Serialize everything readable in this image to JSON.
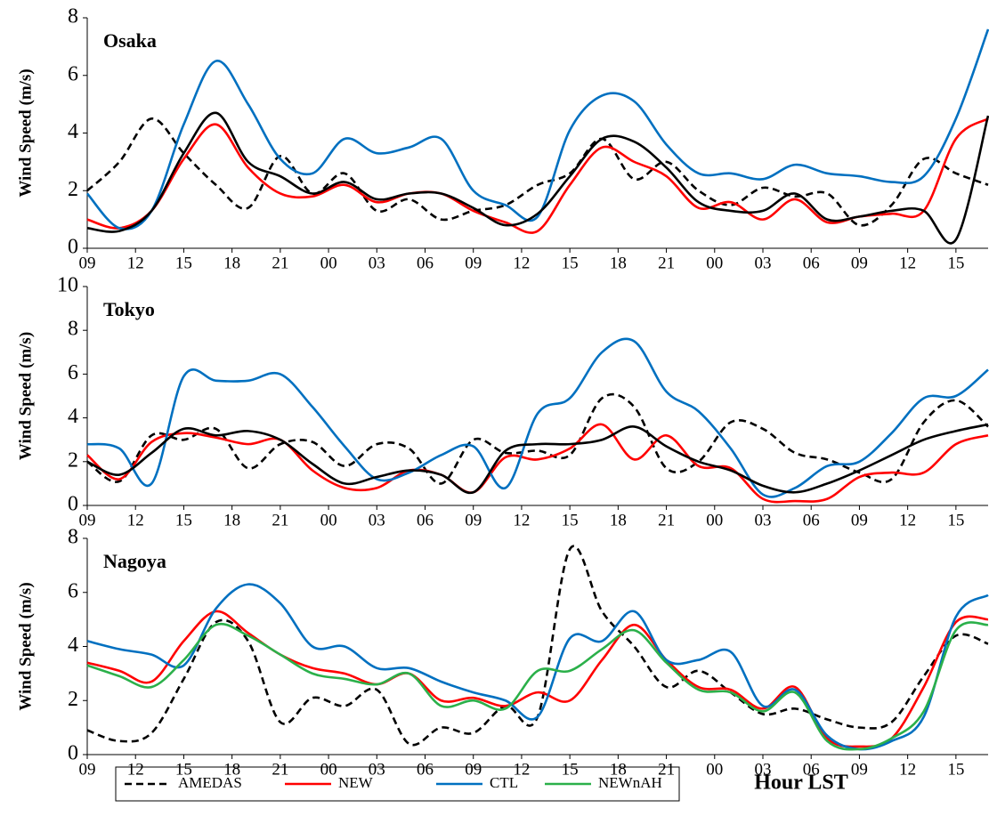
{
  "chart_data": [
    {
      "type": "line",
      "title": "Osaka",
      "y_label": "Wind Speed (m/s)",
      "x": [
        0,
        2,
        4,
        6,
        8,
        10,
        12,
        14,
        16,
        18,
        20,
        22,
        24,
        26,
        28,
        30,
        32,
        34,
        36,
        38,
        40,
        42,
        44,
        46,
        48,
        50,
        52,
        54,
        56
      ],
      "xlim": [
        0,
        56
      ],
      "xticks": [
        {
          "value": 0,
          "label": "09"
        },
        {
          "value": 3,
          "label": "12"
        },
        {
          "value": 6,
          "label": "15"
        },
        {
          "value": 9,
          "label": "18"
        },
        {
          "value": 12,
          "label": "21"
        },
        {
          "value": 15,
          "label": "00"
        },
        {
          "value": 18,
          "label": "03"
        },
        {
          "value": 21,
          "label": "06"
        },
        {
          "value": 24,
          "label": "09"
        },
        {
          "value": 27,
          "label": "12"
        },
        {
          "value": 30,
          "label": "15"
        },
        {
          "value": 33,
          "label": "18"
        },
        {
          "value": 36,
          "label": "21"
        },
        {
          "value": 39,
          "label": "00"
        },
        {
          "value": 42,
          "label": "03"
        },
        {
          "value": 45,
          "label": "06"
        },
        {
          "value": 48,
          "label": "09"
        },
        {
          "value": 51,
          "label": "12"
        },
        {
          "value": 54,
          "label": "15"
        }
      ],
      "ylim": [
        0,
        8
      ],
      "yticks": [
        0,
        2,
        4,
        6,
        8
      ],
      "series": [
        {
          "color": "#000000",
          "style": "dashed",
          "values": [
            2.0,
            3.0,
            4.5,
            3.3,
            2.2,
            1.4,
            3.2,
            1.9,
            2.6,
            1.3,
            1.7,
            1.0,
            1.3,
            1.5,
            2.2,
            2.6,
            3.8,
            2.4,
            3.0,
            2.0,
            1.5,
            2.1,
            1.8,
            1.9,
            0.8,
            1.5,
            3.1,
            2.6,
            2.2
          ]
        },
        {
          "color": "#ff0000",
          "style": "solid",
          "values": [
            1.0,
            0.7,
            1.3,
            3.1,
            4.3,
            2.8,
            1.9,
            1.8,
            2.2,
            1.6,
            1.9,
            1.9,
            1.3,
            0.9,
            0.6,
            2.2,
            3.5,
            3.0,
            2.5,
            1.4,
            1.6,
            1.0,
            1.7,
            0.9,
            1.1,
            1.2,
            1.3,
            3.8,
            4.5
          ]
        },
        {
          "color": "#0070c0",
          "style": "solid",
          "values": [
            1.9,
            0.7,
            1.3,
            4.3,
            6.5,
            5.0,
            3.1,
            2.6,
            3.8,
            3.3,
            3.5,
            3.8,
            2.0,
            1.5,
            1.1,
            4.1,
            5.3,
            5.1,
            3.6,
            2.6,
            2.6,
            2.4,
            2.9,
            2.6,
            2.5,
            2.3,
            2.5,
            4.5,
            7.6
          ]
        },
        {
          "color": "#000000",
          "style": "solid",
          "values": [
            0.7,
            0.6,
            1.3,
            3.3,
            4.7,
            3.0,
            2.5,
            1.9,
            2.3,
            1.7,
            1.9,
            1.9,
            1.4,
            0.8,
            1.2,
            2.5,
            3.8,
            3.7,
            2.8,
            1.6,
            1.3,
            1.3,
            1.9,
            1.0,
            1.1,
            1.3,
            1.3,
            0.3,
            4.6
          ]
        }
      ]
    },
    {
      "type": "line",
      "title": "Tokyo",
      "y_label": "Wind Speed (m/s)",
      "x": [
        0,
        2,
        4,
        6,
        8,
        10,
        12,
        14,
        16,
        18,
        20,
        22,
        24,
        26,
        28,
        30,
        32,
        34,
        36,
        38,
        40,
        42,
        44,
        46,
        48,
        50,
        52,
        54,
        56
      ],
      "xlim": [
        0,
        56
      ],
      "xticks": [
        {
          "value": 0,
          "label": "09"
        },
        {
          "value": 3,
          "label": "12"
        },
        {
          "value": 6,
          "label": "15"
        },
        {
          "value": 9,
          "label": "18"
        },
        {
          "value": 12,
          "label": "21"
        },
        {
          "value": 15,
          "label": "00"
        },
        {
          "value": 18,
          "label": "03"
        },
        {
          "value": 21,
          "label": "06"
        },
        {
          "value": 24,
          "label": "09"
        },
        {
          "value": 27,
          "label": "12"
        },
        {
          "value": 30,
          "label": "15"
        },
        {
          "value": 33,
          "label": "18"
        },
        {
          "value": 36,
          "label": "21"
        },
        {
          "value": 39,
          "label": "00"
        },
        {
          "value": 42,
          "label": "03"
        },
        {
          "value": 45,
          "label": "06"
        },
        {
          "value": 48,
          "label": "09"
        },
        {
          "value": 51,
          "label": "12"
        },
        {
          "value": 54,
          "label": "15"
        }
      ],
      "ylim": [
        0,
        10
      ],
      "yticks": [
        0,
        2,
        4,
        6,
        8,
        10
      ],
      "series": [
        {
          "color": "#000000",
          "style": "dashed",
          "values": [
            2.0,
            1.1,
            3.2,
            3.0,
            3.5,
            1.7,
            2.8,
            2.9,
            1.8,
            2.8,
            2.6,
            1.0,
            3.0,
            2.4,
            2.5,
            2.3,
            4.9,
            4.5,
            1.7,
            2.0,
            3.8,
            3.5,
            2.4,
            2.1,
            1.5,
            1.2,
            3.8,
            4.8,
            3.6
          ]
        },
        {
          "color": "#ff0000",
          "style": "solid",
          "values": [
            2.3,
            1.2,
            2.9,
            3.3,
            3.1,
            2.8,
            3.0,
            1.6,
            0.8,
            0.8,
            1.6,
            1.4,
            0.6,
            2.2,
            2.1,
            2.6,
            3.7,
            2.1,
            3.2,
            1.8,
            1.7,
            0.3,
            0.2,
            0.3,
            1.3,
            1.5,
            1.5,
            2.8,
            3.2
          ]
        },
        {
          "color": "#0070c0",
          "style": "solid",
          "values": [
            2.8,
            2.6,
            1.0,
            5.9,
            5.7,
            5.7,
            6.0,
            4.5,
            2.7,
            1.2,
            1.5,
            2.3,
            2.7,
            0.8,
            4.2,
            4.9,
            7.0,
            7.5,
            5.2,
            4.3,
            2.6,
            0.5,
            0.8,
            1.8,
            2.0,
            3.3,
            4.9,
            5.0,
            6.2
          ]
        },
        {
          "color": "#000000",
          "style": "solid",
          "values": [
            2.0,
            1.4,
            2.4,
            3.5,
            3.2,
            3.4,
            3.0,
            1.9,
            1.0,
            1.3,
            1.6,
            1.4,
            0.6,
            2.5,
            2.8,
            2.8,
            3.0,
            3.6,
            2.7,
            2.0,
            1.6,
            0.9,
            0.6,
            1.0,
            1.6,
            2.3,
            3.0,
            3.4,
            3.7
          ]
        }
      ]
    },
    {
      "type": "line",
      "title": "Nagoya",
      "y_label": "Wind Speed (m/s)",
      "x_label": "Hour LST",
      "x": [
        0,
        2,
        4,
        6,
        8,
        10,
        12,
        14,
        16,
        18,
        20,
        22,
        24,
        26,
        28,
        30,
        32,
        34,
        36,
        38,
        40,
        42,
        44,
        46,
        48,
        50,
        52,
        54,
        56
      ],
      "xlim": [
        0,
        56
      ],
      "xticks": [
        {
          "value": 0,
          "label": "09"
        },
        {
          "value": 3,
          "label": "12"
        },
        {
          "value": 6,
          "label": "15"
        },
        {
          "value": 9,
          "label": "18"
        },
        {
          "value": 12,
          "label": "21"
        },
        {
          "value": 15,
          "label": "00"
        },
        {
          "value": 18,
          "label": "03"
        },
        {
          "value": 21,
          "label": "06"
        },
        {
          "value": 24,
          "label": "09"
        },
        {
          "value": 27,
          "label": "12"
        },
        {
          "value": 30,
          "label": "15"
        },
        {
          "value": 33,
          "label": "18"
        },
        {
          "value": 36,
          "label": "21"
        },
        {
          "value": 39,
          "label": "00"
        },
        {
          "value": 42,
          "label": "03"
        },
        {
          "value": 45,
          "label": "06"
        },
        {
          "value": 48,
          "label": "09"
        },
        {
          "value": 51,
          "label": "12"
        },
        {
          "value": 54,
          "label": "15"
        }
      ],
      "ylim": [
        0,
        8
      ],
      "yticks": [
        0,
        2,
        4,
        6,
        8
      ],
      "series": [
        {
          "name": "AMEDAS",
          "color": "#000000",
          "style": "dashed",
          "values": [
            0.9,
            0.5,
            0.8,
            2.8,
            4.9,
            4.2,
            1.2,
            2.1,
            1.8,
            2.4,
            0.4,
            1.0,
            0.8,
            1.8,
            1.4,
            7.6,
            5.3,
            4.0,
            2.5,
            3.1,
            2.3,
            1.5,
            1.7,
            1.3,
            1.0,
            1.2,
            2.9,
            4.4,
            4.1
          ]
        },
        {
          "name": "NEW",
          "color": "#ff0000",
          "style": "solid",
          "values": [
            3.4,
            3.1,
            2.7,
            4.2,
            5.3,
            4.5,
            3.7,
            3.2,
            3.0,
            2.6,
            3.0,
            2.0,
            2.1,
            1.8,
            2.3,
            2.0,
            3.5,
            4.8,
            3.5,
            2.5,
            2.4,
            1.7,
            2.5,
            0.6,
            0.3,
            0.6,
            2.5,
            4.9,
            5.0
          ]
        },
        {
          "name": "CTL",
          "color": "#0070c0",
          "style": "solid",
          "values": [
            4.2,
            3.9,
            3.7,
            3.3,
            5.4,
            6.3,
            5.6,
            4.0,
            4.0,
            3.2,
            3.2,
            2.7,
            2.3,
            2.0,
            1.4,
            4.3,
            4.2,
            5.3,
            3.5,
            3.5,
            3.8,
            1.8,
            2.4,
            0.7,
            0.2,
            0.5,
            1.4,
            5.1,
            5.9
          ]
        },
        {
          "name": "NEWnAH",
          "color": "#2bb04a",
          "style": "solid",
          "values": [
            3.3,
            2.9,
            2.5,
            3.5,
            4.8,
            4.4,
            3.7,
            3.0,
            2.8,
            2.6,
            3.0,
            1.8,
            2.0,
            1.7,
            3.1,
            3.1,
            3.9,
            4.6,
            3.4,
            2.4,
            2.3,
            1.6,
            2.3,
            0.5,
            0.2,
            0.6,
            1.6,
            4.6,
            4.8
          ]
        }
      ]
    }
  ]
}
